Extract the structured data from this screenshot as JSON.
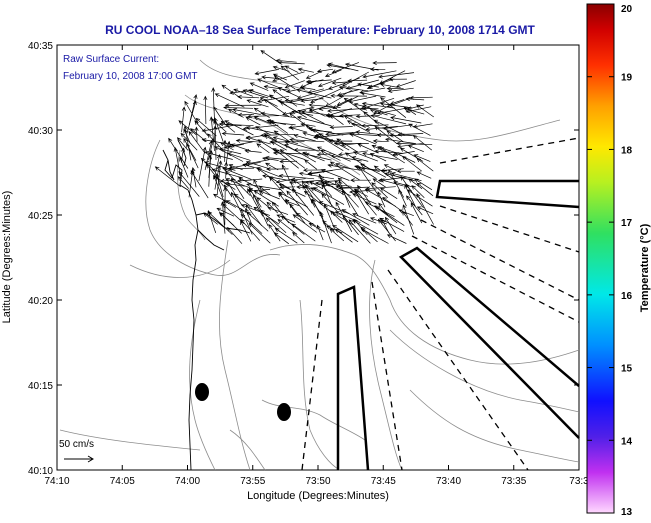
{
  "title": "RU COOL  NOAA–18  Sea Surface Temperature:  February 10, 2008 1714 GMT",
  "annotation": {
    "line1": "Raw Surface Current:",
    "line2": "February 10, 2008 17:00 GMT"
  },
  "scale": {
    "label": "50 cm/s"
  },
  "axes": {
    "xlabel": "Longitude (Degrees:Minutes)",
    "ylabel": "Latitude (Degrees:Minutes)",
    "x_ticks": [
      "74:10",
      "74:05",
      "74:00",
      "73:55",
      "73:50",
      "73:45",
      "73:40",
      "73:35",
      "73:3"
    ],
    "y_ticks": [
      "40:35",
      "40:30",
      "40:25",
      "40:20",
      "40:15",
      "40:10"
    ]
  },
  "colorbar": {
    "label": "Temperature (°C)",
    "ticks": [
      "20",
      "19",
      "18",
      "17",
      "16",
      "15",
      "14",
      "13"
    ],
    "min": 13,
    "max": 20
  },
  "colors": {
    "title": "#1a1aa6",
    "annotation": "#1a1aa6",
    "vectors": "#000000",
    "bathymetry": "#8c8c8c"
  }
}
